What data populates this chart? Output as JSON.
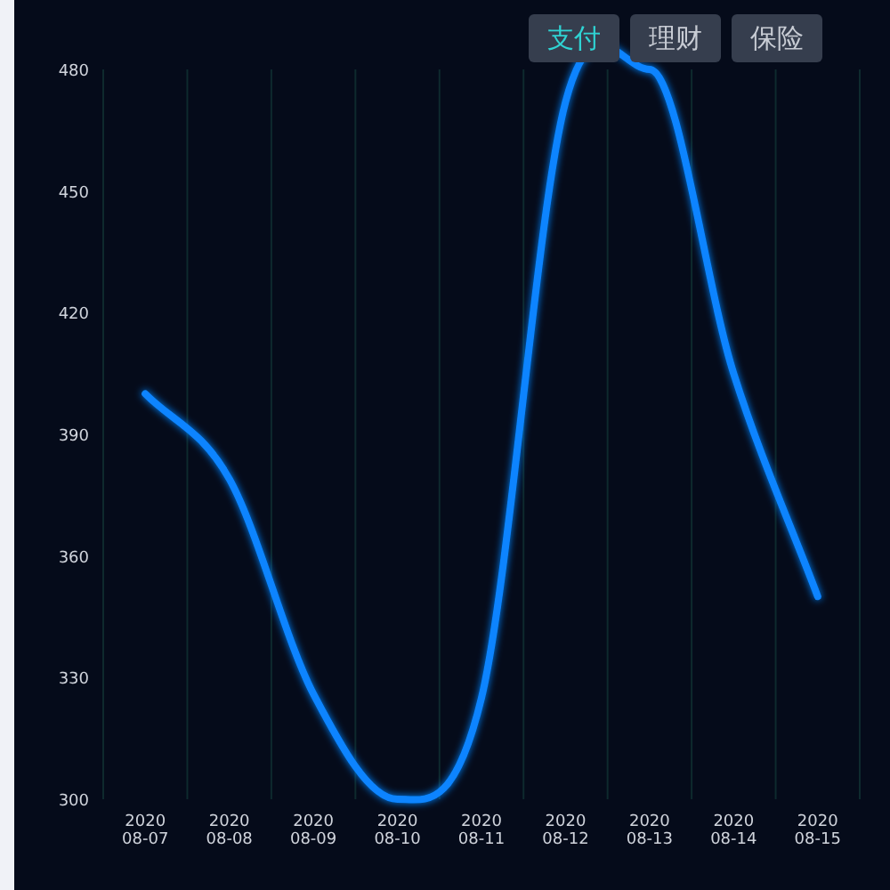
{
  "chart_data": {
    "type": "line",
    "categories": [
      "2020\n08-07",
      "2020\n08-08",
      "2020\n08-09",
      "2020\n08-10",
      "2020\n08-11",
      "2020\n08-12",
      "2020\n08-13",
      "2020\n08-14",
      "2020\n08-15"
    ],
    "series": [
      {
        "color": "#0a84ff",
        "values": [
          400,
          379,
          326,
          300,
          325,
          472,
          480,
          405,
          350
        ]
      }
    ],
    "ylim": [
      300,
      480
    ],
    "yticks": [
      300,
      330,
      360,
      390,
      420,
      450,
      480
    ],
    "grid": "x",
    "marker": "none",
    "line_style": "solid",
    "annotations": [
      "支付",
      "理财",
      "保险"
    ]
  }
}
